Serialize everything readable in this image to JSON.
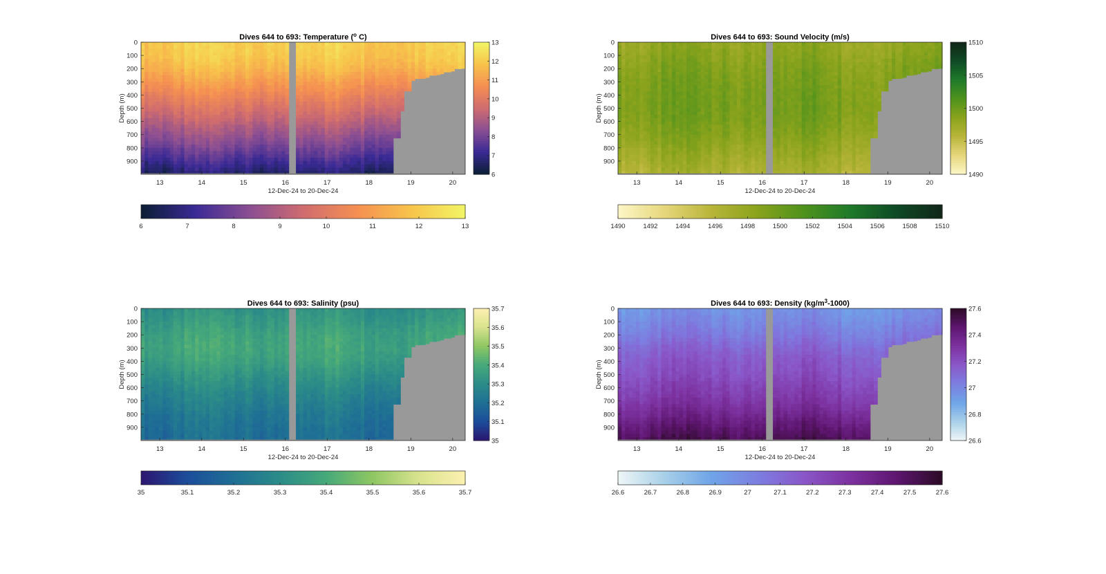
{
  "figure": {
    "background": "#ffffff",
    "no_data_color": "#999999"
  },
  "chart_data": [
    {
      "type": "heatmap",
      "id": "temperature",
      "title_prefix": "Dives 644 to 693: Temperature (",
      "title_super": "o",
      "title_suffix": " C)",
      "ylabel": "Depth (m)",
      "xlabel": "12-Dec-24 to 20-Dec-24",
      "x_range": [
        12.55,
        20.3
      ],
      "x_ticks": [
        "13",
        "14",
        "15",
        "16",
        "17",
        "18",
        "19",
        "20"
      ],
      "y_range": [
        0,
        1000
      ],
      "y_ticks": [
        "0",
        "100",
        "200",
        "300",
        "400",
        "500",
        "600",
        "700",
        "800",
        "900"
      ],
      "colorbar_range": [
        6,
        13
      ],
      "colorbar_ticks": [
        "6",
        "7",
        "8",
        "9",
        "10",
        "11",
        "12",
        "13"
      ],
      "colormap": [
        "#0b1e34",
        "#3a2a95",
        "#8a4e93",
        "#cf6c6f",
        "#f58f52",
        "#f7c44b",
        "#f2f566"
      ],
      "profile_depths_m": [
        0,
        100,
        200,
        300,
        400,
        500,
        600,
        700,
        800,
        900,
        1000
      ],
      "profile_values": [
        12.1,
        12.0,
        11.6,
        11.0,
        10.4,
        9.8,
        9.2,
        8.6,
        8.0,
        7.3,
        6.6
      ],
      "gap_days": [
        16.05,
        16.22
      ]
    },
    {
      "type": "heatmap",
      "id": "sound_velocity",
      "title_prefix": "Dives 644 to 693: Sound Velocity (m/s)",
      "title_super": "",
      "title_suffix": "",
      "ylabel": "Depth (m)",
      "xlabel": "12-Dec-24 to 20-Dec-24",
      "x_range": [
        12.55,
        20.3
      ],
      "x_ticks": [
        "13",
        "14",
        "15",
        "16",
        "17",
        "18",
        "19",
        "20"
      ],
      "y_range": [
        0,
        1000
      ],
      "y_ticks": [
        "0",
        "100",
        "200",
        "300",
        "400",
        "500",
        "600",
        "700",
        "800",
        "900"
      ],
      "colorbar_range": [
        1490,
        1510
      ],
      "colorbar_ticks": [
        "1490",
        "1492",
        "1494",
        "1496",
        "1498",
        "1500",
        "1502",
        "1504",
        "1506",
        "1508",
        "1510"
      ],
      "colorbar_vertical_ticks": [
        "1490",
        "1495",
        "1500",
        "1505",
        "1510"
      ],
      "colormap": [
        "#fdf7c7",
        "#e6d77c",
        "#b9b53a",
        "#8aa31c",
        "#4f921c",
        "#1f7a2a",
        "#0f4a25",
        "#112618"
      ],
      "profile_depths_m": [
        0,
        100,
        200,
        300,
        400,
        500,
        600,
        700,
        800,
        900,
        1000
      ],
      "profile_values": [
        1498.0,
        1498.5,
        1499.0,
        1499.3,
        1499.5,
        1499.6,
        1499.3,
        1498.8,
        1498.0,
        1497.2,
        1496.5
      ],
      "gap_days": [
        16.05,
        16.22
      ]
    },
    {
      "type": "heatmap",
      "id": "salinity",
      "title_prefix": "Dives 644 to 693: Salinity (psu)",
      "title_super": "",
      "title_suffix": "",
      "ylabel": "Depth (m)",
      "xlabel": "12-Dec-24 to 20-Dec-24",
      "x_range": [
        12.55,
        20.3
      ],
      "x_ticks": [
        "13",
        "14",
        "15",
        "16",
        "17",
        "18",
        "19",
        "20"
      ],
      "y_range": [
        0,
        1000
      ],
      "y_ticks": [
        "0",
        "100",
        "200",
        "300",
        "400",
        "500",
        "600",
        "700",
        "800",
        "900"
      ],
      "colorbar_range": [
        35,
        35.7
      ],
      "colorbar_ticks": [
        "35",
        "35.1",
        "35.2",
        "35.3",
        "35.4",
        "35.5",
        "35.6",
        "35.7"
      ],
      "colormap": [
        "#2c1670",
        "#1c4d9a",
        "#1f6f95",
        "#2b8c88",
        "#46a97a",
        "#8fc762",
        "#d9e38d",
        "#fcf0b0"
      ],
      "profile_depths_m": [
        0,
        100,
        200,
        300,
        400,
        500,
        600,
        700,
        800,
        900,
        1000
      ],
      "profile_values": [
        35.32,
        35.35,
        35.38,
        35.39,
        35.37,
        35.33,
        35.29,
        35.26,
        35.23,
        35.21,
        35.2
      ],
      "gap_days": [
        16.05,
        16.22
      ]
    },
    {
      "type": "heatmap",
      "id": "density",
      "title_prefix": "Dives 644 to 693: Density (kg/m",
      "title_super": "3",
      "title_suffix": "-1000)",
      "ylabel": "Depth (m)",
      "xlabel": "12-Dec-24 to 20-Dec-24",
      "x_range": [
        12.55,
        20.3
      ],
      "x_ticks": [
        "13",
        "14",
        "15",
        "16",
        "17",
        "18",
        "19",
        "20"
      ],
      "y_range": [
        0,
        1000
      ],
      "y_ticks": [
        "0",
        "100",
        "200",
        "300",
        "400",
        "500",
        "600",
        "700",
        "800",
        "900"
      ],
      "colorbar_range": [
        26.6,
        27.6
      ],
      "colorbar_ticks": [
        "26.6",
        "26.7",
        "26.8",
        "26.9",
        "27",
        "27.1",
        "27.2",
        "27.3",
        "27.4",
        "27.5",
        "27.6"
      ],
      "colorbar_vertical_ticks": [
        "26.6",
        "26.8",
        "27",
        "27.2",
        "27.4",
        "27.6"
      ],
      "colormap": [
        "#eef6f6",
        "#a8d0e8",
        "#6fa5e8",
        "#7c7fe0",
        "#8a57c9",
        "#7d32a0",
        "#5e1670",
        "#2c0a26"
      ],
      "profile_depths_m": [
        0,
        100,
        200,
        300,
        400,
        500,
        600,
        700,
        800,
        900,
        1000
      ],
      "profile_values": [
        26.95,
        27.0,
        27.05,
        27.12,
        27.17,
        27.2,
        27.25,
        27.3,
        27.37,
        27.45,
        27.52
      ],
      "gap_days": [
        16.05,
        16.22
      ]
    }
  ]
}
